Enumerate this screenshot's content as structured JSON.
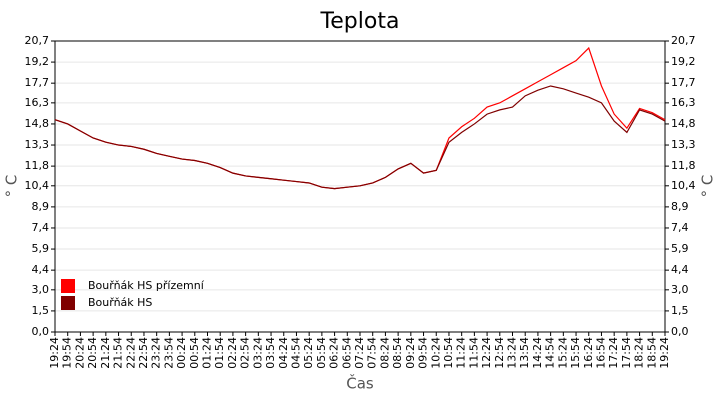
{
  "chart_data": {
    "type": "line",
    "title": "Teplota",
    "xlabel": "Čas",
    "ylabel": "° C",
    "y2label": "° C",
    "categories": [
      "19:24",
      "19:54",
      "20:24",
      "20:54",
      "21:24",
      "21:54",
      "22:24",
      "22:54",
      "23:24",
      "23:54",
      "00:24",
      "00:54",
      "01:24",
      "01:54",
      "02:24",
      "02:54",
      "03:24",
      "03:54",
      "04:24",
      "04:54",
      "05:24",
      "05:54",
      "06:24",
      "06:54",
      "07:24",
      "07:54",
      "08:24",
      "08:54",
      "09:24",
      "09:54",
      "10:24",
      "10:54",
      "11:24",
      "11:54",
      "12:24",
      "12:54",
      "13:24",
      "13:54",
      "14:24",
      "14:54",
      "15:24",
      "15:54",
      "16:24",
      "16:54",
      "17:24",
      "17:54",
      "18:24",
      "18:54",
      "19:24"
    ],
    "series": [
      {
        "name": "Bouřňák HS přízemní",
        "color": "#ff0000",
        "values": [
          15.1,
          14.8,
          14.3,
          13.8,
          13.5,
          13.3,
          13.2,
          13.0,
          12.7,
          12.5,
          12.3,
          12.2,
          12.0,
          11.7,
          11.3,
          11.1,
          11.0,
          10.9,
          10.8,
          10.7,
          10.6,
          10.3,
          10.2,
          10.3,
          10.4,
          10.6,
          11.0,
          11.6,
          12.0,
          11.3,
          11.5,
          13.8,
          14.6,
          15.2,
          16.0,
          16.3,
          16.8,
          17.3,
          17.8,
          18.3,
          18.8,
          19.3,
          20.2,
          17.5,
          15.5,
          14.5,
          15.9,
          15.6,
          15.1
        ]
      },
      {
        "name": "Bouřňák HS",
        "color": "#800000",
        "values": [
          15.1,
          14.8,
          14.3,
          13.8,
          13.5,
          13.3,
          13.2,
          13.0,
          12.7,
          12.5,
          12.3,
          12.2,
          12.0,
          11.7,
          11.3,
          11.1,
          11.0,
          10.9,
          10.8,
          10.7,
          10.6,
          10.3,
          10.2,
          10.3,
          10.4,
          10.6,
          11.0,
          11.6,
          12.0,
          11.3,
          11.5,
          13.5,
          14.2,
          14.8,
          15.5,
          15.8,
          16.0,
          16.8,
          17.2,
          17.5,
          17.3,
          17.0,
          16.7,
          16.3,
          15.0,
          14.2,
          15.8,
          15.5,
          15.0
        ]
      }
    ],
    "ylim": [
      0,
      20.7
    ],
    "yticks": [
      {
        "value": 0,
        "label": "0,0"
      },
      {
        "value": 1.5,
        "label": "1,5"
      },
      {
        "value": 3.0,
        "label": "3,0"
      },
      {
        "value": 4.4,
        "label": "4,4"
      },
      {
        "value": 5.9,
        "label": "5,9"
      },
      {
        "value": 7.4,
        "label": "7,4"
      },
      {
        "value": 8.9,
        "label": "8,9"
      },
      {
        "value": 10.4,
        "label": "10,4"
      },
      {
        "value": 11.8,
        "label": "11,8"
      },
      {
        "value": 13.3,
        "label": "13,3"
      },
      {
        "value": 14.8,
        "label": "14,8"
      },
      {
        "value": 16.3,
        "label": "16,3"
      },
      {
        "value": 17.7,
        "label": "17,7"
      },
      {
        "value": 19.2,
        "label": "19,2"
      },
      {
        "value": 20.7,
        "label": "20,7"
      }
    ],
    "y2lim": [
      0,
      20.7
    ],
    "y2ticks": [
      {
        "value": 0,
        "label": "0,0"
      },
      {
        "value": 1.5,
        "label": "1,5"
      },
      {
        "value": 3.0,
        "label": "3,0"
      },
      {
        "value": 4.4,
        "label": "4,4"
      },
      {
        "value": 5.9,
        "label": "5,9"
      },
      {
        "value": 7.4,
        "label": "7,4"
      },
      {
        "value": 8.9,
        "label": "8,9"
      },
      {
        "value": 10.4,
        "label": "10,4"
      },
      {
        "value": 11.8,
        "label": "11,8"
      },
      {
        "value": 13.3,
        "label": "13,3"
      },
      {
        "value": 14.8,
        "label": "14,8"
      },
      {
        "value": 16.3,
        "label": "16,3"
      },
      {
        "value": 17.7,
        "label": "17,7"
      },
      {
        "value": 19.2,
        "label": "19,2"
      },
      {
        "value": 20.7,
        "label": "20,7"
      }
    ],
    "grid": true,
    "legend": "lower left"
  }
}
